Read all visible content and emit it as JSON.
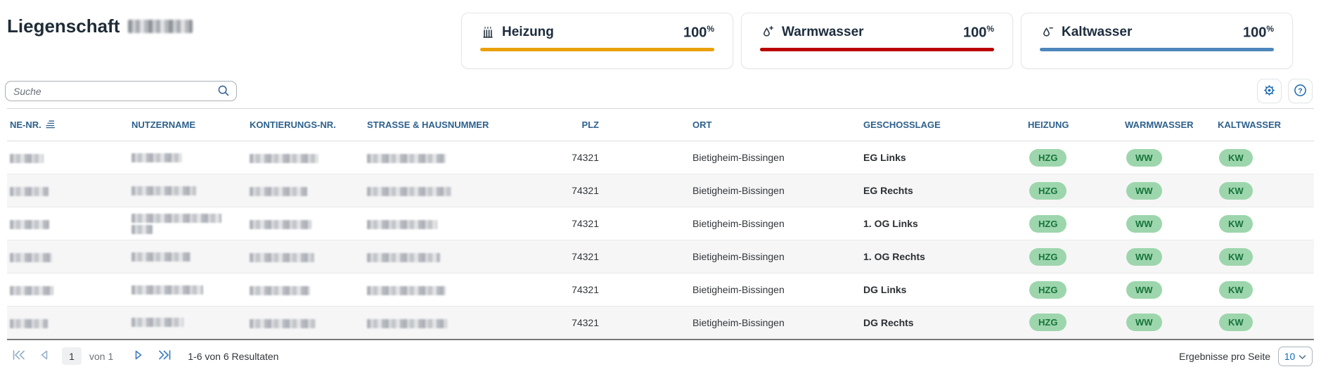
{
  "header": {
    "title": "Liegenschaft",
    "title_suffix": "[redacted]"
  },
  "cards": [
    {
      "label": "Heizung",
      "value": "100",
      "unit": "%",
      "bar_color": "#e9a00a",
      "icon": "radiator-icon"
    },
    {
      "label": "Warmwasser",
      "value": "100",
      "unit": "%",
      "bar_color": "#bb0000",
      "icon": "droplet-plus-icon"
    },
    {
      "label": "Kaltwasser",
      "value": "100",
      "unit": "%",
      "bar_color": "#4d87bb",
      "icon": "droplet-minus-icon"
    }
  ],
  "toolbar": {
    "search_placeholder": "Suche",
    "icons": [
      "gear-icon",
      "help-icon"
    ]
  },
  "table": {
    "columns": [
      {
        "label": "NE-NR.",
        "sorted": "ascending"
      },
      {
        "label": "NUTZERNAME"
      },
      {
        "label": "KONTIERUNGS-NR."
      },
      {
        "label": "STRASSE & HAUSNUMMER"
      },
      {
        "label": "PLZ"
      },
      {
        "label": "ORT"
      },
      {
        "label": "GESCHOSSLAGE"
      },
      {
        "label": "HEIZUNG"
      },
      {
        "label": "WARMWASSER"
      },
      {
        "label": "KALTWASSER"
      }
    ],
    "badge": {
      "heizung": "HZG",
      "warmwasser": "WW",
      "kaltwasser": "KW",
      "bg": "#9dd6ac",
      "fg": "#17733b"
    },
    "rows": [
      {
        "plz": "74321",
        "ort": "Bietigheim-Bissingen",
        "geschosslage": "EG Links",
        "redacted": {
          "ne": 48,
          "name": [
            72
          ],
          "konto": 98,
          "strasse": 112
        }
      },
      {
        "plz": "74321",
        "ort": "Bietigheim-Bissingen",
        "geschosslage": "EG Rechts",
        "redacted": {
          "ne": 55,
          "name": [
            92
          ],
          "konto": 82,
          "strasse": 120
        }
      },
      {
        "plz": "74321",
        "ort": "Bietigheim-Bissingen",
        "geschosslage": "1. OG Links",
        "redacted": {
          "ne": 56,
          "name": [
            128,
            30
          ],
          "konto": 88,
          "strasse": 100
        }
      },
      {
        "plz": "74321",
        "ort": "Bietigheim-Bissingen",
        "geschosslage": "1. OG Rechts",
        "redacted": {
          "ne": 60,
          "name": [
            84
          ],
          "konto": 92,
          "strasse": 104
        }
      },
      {
        "plz": "74321",
        "ort": "Bietigheim-Bissingen",
        "geschosslage": "DG Links",
        "redacted": {
          "ne": 62,
          "name": [
            102
          ],
          "konto": 86,
          "strasse": 112
        }
      },
      {
        "plz": "74321",
        "ort": "Bietigheim-Bissingen",
        "geschosslage": "DG Rechts",
        "redacted": {
          "ne": 54,
          "name": [
            74
          ],
          "konto": 94,
          "strasse": 114
        }
      }
    ]
  },
  "pagination": {
    "page": "1",
    "pages_label": "von 1",
    "summary": "1-6 von 6 Resultaten",
    "per_page_label": "Ergebnisse pro Seite",
    "per_page": "10"
  }
}
